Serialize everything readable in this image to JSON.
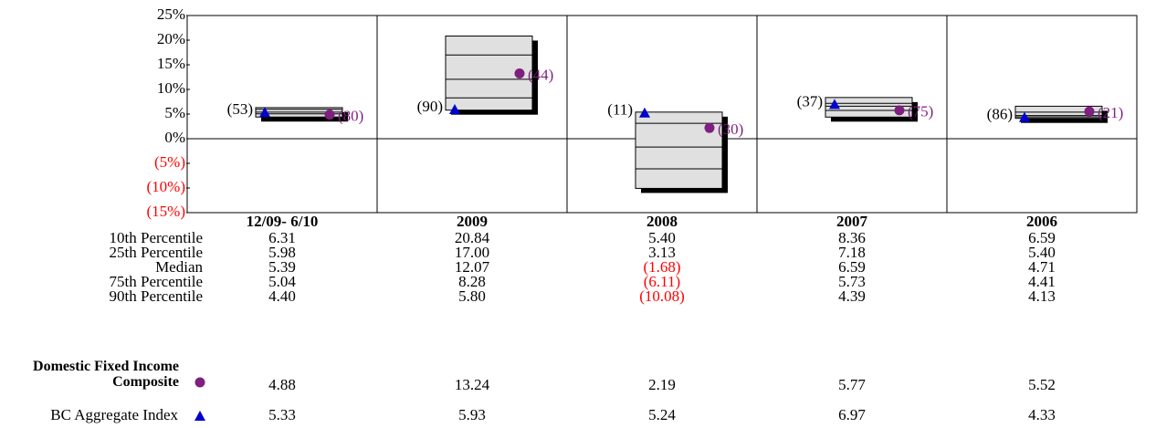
{
  "chart_data": {
    "type": "floating-box",
    "categories": [
      "12/09- 6/10",
      "2009",
      "2008",
      "2007",
      "2006"
    ],
    "ylim": [
      -15,
      25
    ],
    "yticks": [
      {
        "value": 25,
        "label": "25%"
      },
      {
        "value": 20,
        "label": "20%"
      },
      {
        "value": 15,
        "label": "15%"
      },
      {
        "value": 10,
        "label": "10%"
      },
      {
        "value": 5,
        "label": "5%"
      },
      {
        "value": 0,
        "label": "0%"
      },
      {
        "value": -5,
        "label": "(5%)"
      },
      {
        "value": -10,
        "label": "(10%)"
      },
      {
        "value": -15,
        "label": "(15%)"
      }
    ],
    "negative_color": "#ff0000",
    "box_color": "#e0e0e0",
    "percentiles": [
      {
        "name": "10th Percentile",
        "values": [
          6.31,
          20.84,
          5.4,
          8.36,
          6.59
        ],
        "value_labels": [
          "6.31",
          "20.84",
          "5.40",
          "8.36",
          "6.59"
        ]
      },
      {
        "name": "25th Percentile",
        "values": [
          5.98,
          17.0,
          3.13,
          7.18,
          5.4
        ],
        "value_labels": [
          "5.98",
          "17.00",
          "3.13",
          "7.18",
          "5.40"
        ]
      },
      {
        "name": "Median",
        "values": [
          5.39,
          12.07,
          -1.68,
          6.59,
          4.71
        ],
        "value_labels": [
          "5.39",
          "12.07",
          "(1.68)",
          "6.59",
          "4.71"
        ]
      },
      {
        "name": "75th Percentile",
        "values": [
          5.04,
          8.28,
          -6.11,
          5.73,
          4.41
        ],
        "value_labels": [
          "5.04",
          "8.28",
          "(6.11)",
          "5.73",
          "4.41"
        ]
      },
      {
        "name": "90th Percentile",
        "values": [
          4.4,
          5.8,
          -10.08,
          4.39,
          4.13
        ],
        "value_labels": [
          "4.40",
          "5.80",
          "(10.08)",
          "4.39",
          "4.13"
        ]
      }
    ],
    "series": [
      {
        "name": "Domestic Fixed Income Composite",
        "color": "#7f1f7f",
        "marker": "circle",
        "values": [
          4.88,
          13.24,
          2.19,
          5.77,
          5.52
        ],
        "value_labels": [
          "4.88",
          "13.24",
          "2.19",
          "5.77",
          "5.52"
        ],
        "rank_labels": [
          "(80)",
          "(44)",
          "(30)",
          "(75)",
          "(21)"
        ]
      },
      {
        "name": "BC Aggregate Index",
        "color": "#0000cc",
        "marker": "triangle",
        "values": [
          5.33,
          5.93,
          5.24,
          6.97,
          4.33
        ],
        "value_labels": [
          "5.33",
          "5.93",
          "5.24",
          "6.97",
          "4.33"
        ],
        "rank_labels": [
          "(53)",
          "(90)",
          "(11)",
          "(37)",
          "(86)"
        ]
      }
    ]
  }
}
